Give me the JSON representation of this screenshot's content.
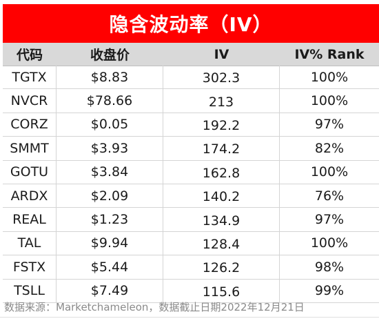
{
  "title": "隐含波动率（IV）",
  "columns": [
    "代码",
    "收盘价",
    "IV",
    "IV% Rank"
  ],
  "rows": [
    [
      "TGTX",
      "$8.83",
      "302.3",
      "100%"
    ],
    [
      "NVCR",
      "$78.66",
      "213",
      "100%"
    ],
    [
      "CORZ",
      "$0.05",
      "192.2",
      "97%"
    ],
    [
      "SMMT",
      "$3.93",
      "174.2",
      "82%"
    ],
    [
      "GOTU",
      "$3.84",
      "162.8",
      "100%"
    ],
    [
      "ARDX",
      "$2.09",
      "140.2",
      "76%"
    ],
    [
      "REAL",
      "$1.23",
      "134.9",
      "97%"
    ],
    [
      "TAL",
      "$9.94",
      "128.4",
      "100%"
    ],
    [
      "FSTX",
      "$5.44",
      "126.2",
      "98%"
    ],
    [
      "TSLL",
      "$7.49",
      "115.6",
      "99%"
    ]
  ],
  "footer": "数据来源：Marketchameleon，数据截止日期2022年12月21日",
  "colors": {
    "title_bg": "#ff0000",
    "title_text": "#ffffff",
    "header_bg": "#d9d9d9"
  }
}
